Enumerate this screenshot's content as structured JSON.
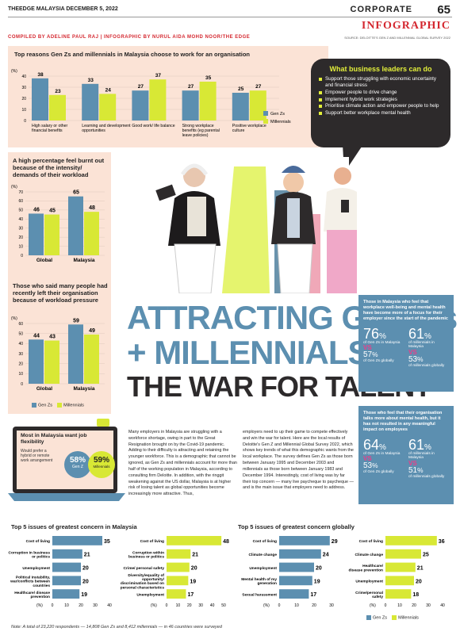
{
  "header": {
    "publication": "THEEDGE MALAYSIA DECEMBER 5, 2022",
    "section": "CORPORATE",
    "page_number": "65",
    "kicker": "INFOGRAPHIC",
    "compiled_by": "COMPILED BY ADELINE PAUL RAJ | INFOGRAPHIC BY NURUL AIDA MOHD NOOR/THE EDGE",
    "source": "SOURCE: DELOITTE'S GEN Z AND MILLENNIAL GLOBAL SURVEY 2022"
  },
  "colors": {
    "genz": "#5c8fb0",
    "millennials": "#d8e835",
    "peach": "#fbe3d6",
    "accent": "#d4272f"
  },
  "legend": {
    "genz": "Gen Zs",
    "millennials": "Millennials"
  },
  "leaders": {
    "title": "What business leaders can do",
    "items": [
      "Support those struggling with economic uncertainty and financial stress",
      "Empower people to drive change",
      "Implement hybrid work strategies",
      "Prioritise climate action and empower people to help",
      "Support better workplace mental health"
    ]
  },
  "headline": {
    "line1": "ATTRACTING GEN Zs",
    "line2": "+ MILLENNIALS IN",
    "line3": "THE WAR FOR TALENT"
  },
  "body": {
    "col1": "Many employers in Malaysia are struggling with a workforce shortage, owing in part to the Great Resignation brought on by the Covid-19 pandemic. Adding to their difficulty is attracting and retaining the younger workforce. This is a demographic that cannot be ignored, as Gen Zs and millennials account for more than half of the working population in Malaysia, according to consulting firm Deloitte. In addition, with the ringgit weakening against the US dollar, Malaysia is at higher risk of losing talent as global opportunities become increasingly more attractive. Thus,",
    "col2": "employers need to up their game to compete effectively and win the war for talent. Here are the local results of Deloitte's Gen Z and Millennial Global Survey 2022, which shows key trends of what this demographic wants from the local workplace. The survey defines Gen Zs as those born between January 1995 and December 2003 and millennials as those born between January 1983 and December 1994. Interestingly, cost of living was by far their top concern — many live paycheque to paycheque — and is the main issue that employers need to address."
  },
  "hybrid": {
    "title": "Most in Malaysia want job flexibility",
    "subtitle": "Would prefer a hybrid or remote work arrangement",
    "genz_value": "58%",
    "genz_label": "Gen Z",
    "mill_value": "59%",
    "mill_label": "Millennials"
  },
  "wellbeing": {
    "title": "Those in Malaysia who feel that workplace well-being and mental health have become more of a focus for their employer since the start of the pandemic",
    "genz_my": "76",
    "genz_my_label": "of Gen Zs in Malaysia",
    "mill_my": "61",
    "mill_my_label": "of millennials in Malaysia",
    "genz_gl": "57",
    "genz_gl_label": "of Gen Zs globally",
    "mill_gl": "53",
    "mill_gl_label": "of millennials globally",
    "vs": "VS",
    "pct": "%"
  },
  "meaningful": {
    "title": "Those who feel that their organisation talks more about mental health, but it has not resulted in any meaningful impact on employees",
    "genz_my": "64",
    "genz_my_label": "of Gen Zs in Malaysia",
    "mill_my": "61",
    "mill_my_label": "of millennials in Malaysia",
    "genz_gl": "53",
    "genz_gl_label": "of Gen Zs globally",
    "mill_gl": "51",
    "mill_gl_label": "of millennials globally"
  },
  "note": "Note: A total of 23,220 respondents — 14,808 Gen Zs and 8,412 millennials — in 46 countries were surveyed",
  "chart_data": [
    {
      "id": "reasons",
      "type": "bar",
      "title": "Top reasons Gen Zs and millennials in Malaysia choose to work for an organisation",
      "ylabel": "(%)",
      "ylim": [
        0,
        40
      ],
      "yticks": [
        0,
        10,
        20,
        30,
        40
      ],
      "categories": [
        "High salary or other financial benefits",
        "Learning and development opportunities",
        "Good work/ life balance",
        "Strong workplace benefits (eg parental leave policies)",
        "Positive workplace culture"
      ],
      "series": [
        {
          "name": "Gen Zs",
          "values": [
            38,
            33,
            27,
            27,
            25
          ]
        },
        {
          "name": "Millennials",
          "values": [
            23,
            24,
            37,
            35,
            27
          ]
        }
      ]
    },
    {
      "id": "burnout",
      "type": "bar",
      "title": "A high percentage feel burnt out because of the intensity/ demands of their workload",
      "ylabel": "(%)",
      "ylim": [
        0,
        70
      ],
      "yticks": [
        0,
        10,
        20,
        30,
        40,
        50,
        60,
        70
      ],
      "categories": [
        "Global",
        "Malaysia"
      ],
      "series": [
        {
          "name": "Gen Zs",
          "values": [
            46,
            65
          ]
        },
        {
          "name": "Millennials",
          "values": [
            45,
            48
          ]
        }
      ]
    },
    {
      "id": "left",
      "type": "bar",
      "title": "Those who said many people had recently left their organisation because of workload pressure",
      "ylabel": "(%)",
      "ylim": [
        0,
        60
      ],
      "yticks": [
        0,
        10,
        20,
        30,
        40,
        50,
        60
      ],
      "categories": [
        "Global",
        "Malaysia"
      ],
      "series": [
        {
          "name": "Gen Zs",
          "values": [
            44,
            59
          ]
        },
        {
          "name": "Millennials",
          "values": [
            43,
            49
          ]
        }
      ]
    },
    {
      "id": "concern_my_genz",
      "type": "bar",
      "title": "Top 5 issues of greatest concern in Malaysia",
      "xlabel": "(%)",
      "xlim": [
        0,
        40
      ],
      "xticks": [
        0,
        10,
        20,
        30,
        40
      ],
      "series_name": "Gen Zs",
      "categories": [
        "Cost of living",
        "Corruption in business or politics",
        "Unemployment",
        "Political instability, war/conflicts between countries",
        "Healthcare/ disease prevention"
      ],
      "values": [
        35,
        21,
        20,
        20,
        19
      ]
    },
    {
      "id": "concern_my_mill",
      "type": "bar",
      "xlabel": "(%)",
      "xlim": [
        0,
        50
      ],
      "xticks": [
        0,
        10,
        20,
        30,
        40,
        50
      ],
      "series_name": "Millennials",
      "categories": [
        "Cost of living",
        "Corruption within business or politics",
        "Crime/ personal safety",
        "Diversity/equality of opportunity/ discrimination based on personal characteristics",
        "Unemployment"
      ],
      "values": [
        48,
        21,
        20,
        19,
        17
      ]
    },
    {
      "id": "concern_gl_genz",
      "type": "bar",
      "title": "Top 5 issues of greatest concern globally",
      "xlabel": "(%)",
      "xlim": [
        0,
        30
      ],
      "xticks": [
        0,
        10,
        20,
        30
      ],
      "series_name": "Gen Zs",
      "categories": [
        "Cost of living",
        "Climate change",
        "Unemployment",
        "Mental health of my generation",
        "Sexual harassment"
      ],
      "values": [
        29,
        24,
        20,
        19,
        17
      ]
    },
    {
      "id": "concern_gl_mill",
      "type": "bar",
      "xlabel": "(%)",
      "xlim": [
        0,
        40
      ],
      "xticks": [
        0,
        10,
        20,
        30,
        40
      ],
      "series_name": "Millennials",
      "categories": [
        "Cost of living",
        "Climate change",
        "Healthcare/ disease prevention",
        "Unemployment",
        "Crime/personal safety"
      ],
      "values": [
        36,
        25,
        21,
        20,
        18
      ]
    }
  ]
}
